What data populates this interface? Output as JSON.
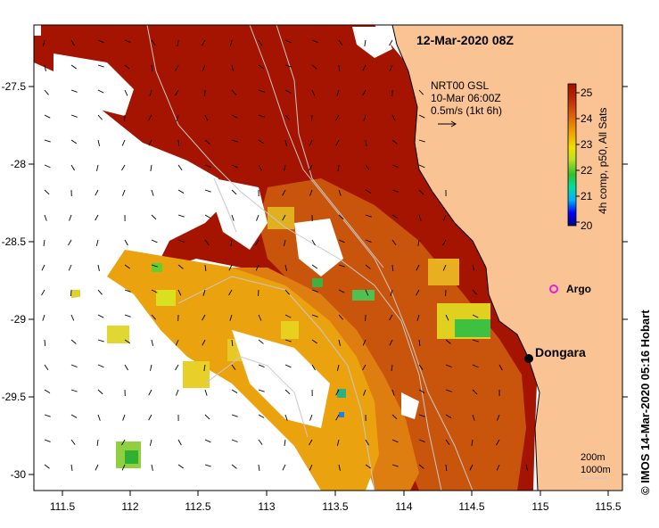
{
  "map": {
    "timestamp": "12-Mar-2020 08Z",
    "credit": "©  IMOS 14-Mar-2020 05:16 Hobart",
    "current_legend": {
      "lines": [
        "NRT00 GSL",
        "10-Mar 06:00Z",
        "0.5m/s (1kt 6h)"
      ]
    },
    "colorbar": {
      "label": "4h comp, p50, All Sats",
      "range": [
        20,
        25.5
      ],
      "ticks": [
        "20",
        "21",
        "22",
        "23",
        "24",
        "25"
      ]
    },
    "isobaths": {
      "label_200": "200m",
      "label_1000": "1000m"
    },
    "places": {
      "dongara": "Dongara",
      "argo": "Argo"
    },
    "axes": {
      "x_ticks": [
        "111.5",
        "112",
        "112.5",
        "113",
        "113.5",
        "114",
        "114.5",
        "115",
        "115.5"
      ],
      "y_ticks": [
        "-27.5",
        "-28",
        "-28.5",
        "-29",
        "-29.5",
        "-30"
      ],
      "lon_range": [
        111.3,
        115.6
      ],
      "lat_range": [
        -30.1,
        -27.05
      ]
    },
    "colors": {
      "land": "#f9c393",
      "cloud": "#ffffff",
      "warm": "#a51400",
      "argo": "#e020e0"
    }
  }
}
